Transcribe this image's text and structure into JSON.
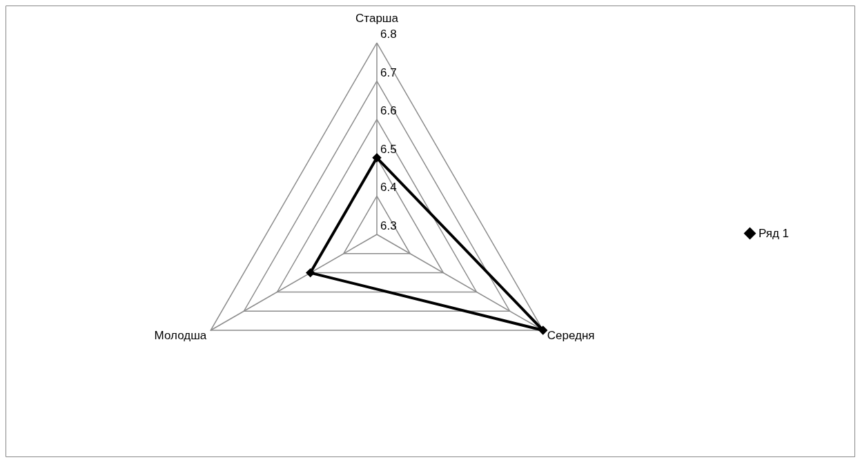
{
  "chart_data": {
    "type": "radar",
    "categories": [
      "Старша",
      "Середня",
      "Молодша"
    ],
    "series": [
      {
        "name": "Ряд 1",
        "color": "#000000",
        "values": [
          6.5,
          6.8,
          6.5
        ]
      }
    ],
    "ylim": [
      6.3,
      6.8
    ],
    "yticks": [
      6.3,
      6.4,
      6.5,
      6.6,
      6.7,
      6.8
    ],
    "grid": true,
    "legend": "right",
    "marker": "diamond",
    "line_style": "solid"
  }
}
